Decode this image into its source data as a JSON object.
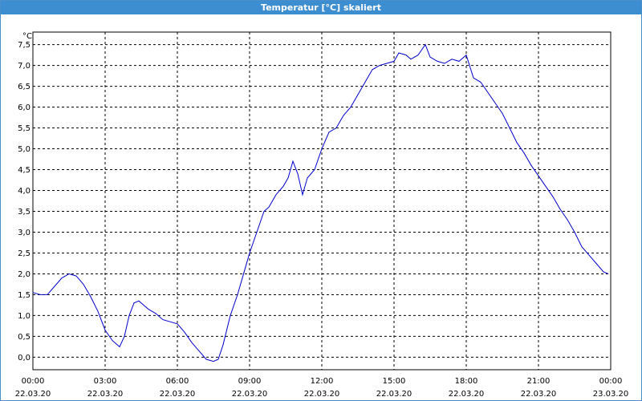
{
  "window": {
    "title": "Temperatur [°C] skaliert"
  },
  "colors": {
    "series": "#0000cc",
    "titlebar": "#3d8dd1",
    "grid": "#000000"
  },
  "chart_data": {
    "type": "line",
    "title": "Temperatur [°C] skaliert",
    "y_unit": "°C",
    "ylim": [
      -0.3,
      7.8
    ],
    "xlim": [
      0,
      24
    ],
    "grid": "dashed",
    "y_ticks": [
      "0,0",
      "0,5",
      "1,0",
      "1,5",
      "2,0",
      "2,5",
      "3,0",
      "3,5",
      "4,0",
      "4,5",
      "5,0",
      "5,5",
      "6,0",
      "6,5",
      "7,0",
      "7,5"
    ],
    "x_ticks": [
      {
        "time": "00:00",
        "date": "22.03.20"
      },
      {
        "time": "03:00",
        "date": "22.03.20"
      },
      {
        "time": "06:00",
        "date": "22.03.20"
      },
      {
        "time": "09:00",
        "date": "22.03.20"
      },
      {
        "time": "12:00",
        "date": "22.03.20"
      },
      {
        "time": "15:00",
        "date": "22.03.20"
      },
      {
        "time": "18:00",
        "date": "22.03.20"
      },
      {
        "time": "21:00",
        "date": "22.03.20"
      },
      {
        "time": "00:00",
        "date": "23.03.20"
      }
    ],
    "series": [
      {
        "x": [
          0,
          0.3,
          0.6,
          0.9,
          1.2,
          1.5,
          1.8,
          2.1,
          2.4,
          2.7,
          3.0,
          3.3,
          3.6,
          3.8,
          4.0,
          4.2,
          4.4,
          4.6,
          4.8,
          5.1,
          5.4,
          5.7,
          6.0,
          6.3,
          6.6,
          6.9,
          7.2,
          7.5,
          7.7,
          7.9,
          8.2,
          8.5,
          8.8,
          9.0,
          9.3,
          9.6,
          9.8,
          10.1,
          10.4,
          10.6,
          10.8,
          11.0,
          11.2,
          11.4,
          11.7,
          12.0,
          12.3,
          12.6,
          12.9,
          13.2,
          13.5,
          13.8,
          14.1,
          14.4,
          14.7,
          15.0,
          15.2,
          15.5,
          15.7,
          16.0,
          16.3,
          16.5,
          16.8,
          17.1,
          17.4,
          17.7,
          18.0,
          18.3,
          18.6,
          18.9,
          19.2,
          19.5,
          19.8,
          20.1,
          20.4,
          20.7,
          21.0,
          21.3,
          21.6,
          21.9,
          22.2,
          22.5,
          22.8,
          23.1,
          23.4,
          23.7,
          23.9
        ],
        "y": [
          1.55,
          1.5,
          1.5,
          1.7,
          1.9,
          2.0,
          1.95,
          1.75,
          1.45,
          1.1,
          0.65,
          0.4,
          0.25,
          0.5,
          1.0,
          1.3,
          1.35,
          1.25,
          1.15,
          1.05,
          0.9,
          0.85,
          0.8,
          0.6,
          0.35,
          0.15,
          -0.05,
          -0.1,
          -0.05,
          0.3,
          1.0,
          1.5,
          2.1,
          2.5,
          3.0,
          3.5,
          3.6,
          3.9,
          4.1,
          4.3,
          4.7,
          4.4,
          3.9,
          4.3,
          4.5,
          5.0,
          5.4,
          5.5,
          5.8,
          6.0,
          6.3,
          6.6,
          6.9,
          7.0,
          7.05,
          7.1,
          7.3,
          7.25,
          7.15,
          7.25,
          7.5,
          7.2,
          7.1,
          7.05,
          7.15,
          7.1,
          7.25,
          6.7,
          6.6,
          6.35,
          6.1,
          5.85,
          5.5,
          5.15,
          4.9,
          4.6,
          4.35,
          4.1,
          3.85,
          3.55,
          3.3,
          3.0,
          2.65,
          2.45,
          2.25,
          2.05,
          2.0
        ]
      }
    ]
  }
}
